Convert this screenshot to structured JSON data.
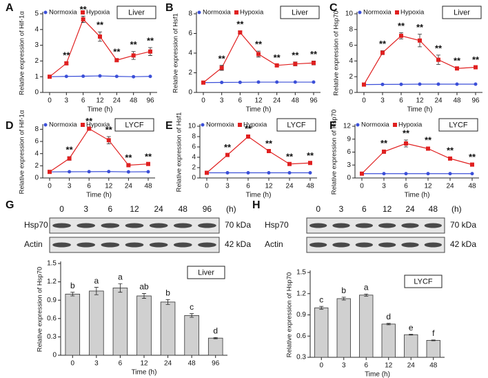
{
  "chart_data": [
    {
      "panel": "A",
      "type": "line",
      "title": "Liver",
      "categories": [
        "0",
        "3",
        "6",
        "12",
        "24",
        "48",
        "96"
      ],
      "xlabel": "Time (h)",
      "ylabel": "Relative expression of Hif-1α",
      "ylim": [
        0,
        5
      ],
      "yticks": [
        0,
        1,
        2,
        3,
        4,
        5
      ],
      "series": [
        {
          "name": "Normoxia",
          "color": "#3b4fd8",
          "marker": "circle",
          "values": [
            1,
            1.02,
            1.03,
            1.05,
            1.02,
            1,
            1.02
          ]
        },
        {
          "name": "Hypoxia",
          "color": "#e02020",
          "marker": "square",
          "values": [
            1,
            1.85,
            4.65,
            3.55,
            2.05,
            2.35,
            2.6
          ],
          "errors": [
            0.03,
            0.08,
            0.2,
            0.3,
            0.1,
            0.25,
            0.25
          ]
        }
      ],
      "annotations": [
        null,
        "**",
        "**",
        "**",
        "**",
        "**",
        "**"
      ]
    },
    {
      "panel": "B",
      "type": "line",
      "title": "Liver",
      "categories": [
        "0",
        "3",
        "6",
        "12",
        "24",
        "48",
        "96"
      ],
      "xlabel": "Time (h)",
      "ylabel": "Relative expression of Hsf1",
      "ylim": [
        0,
        8
      ],
      "yticks": [
        0,
        2,
        4,
        6,
        8
      ],
      "series": [
        {
          "name": "Normoxia",
          "color": "#3b4fd8",
          "marker": "circle",
          "values": [
            1,
            1.02,
            1.03,
            1.05,
            1.05,
            1.05,
            1.05
          ]
        },
        {
          "name": "Hypoxia",
          "color": "#e02020",
          "marker": "square",
          "values": [
            1,
            2.5,
            6.1,
            3.9,
            2.75,
            2.9,
            3.0
          ],
          "errors": [
            0.05,
            0.25,
            0.15,
            0.3,
            0.1,
            0.2,
            0.2
          ]
        }
      ],
      "annotations": [
        null,
        "**",
        "**",
        "**",
        "**",
        "**",
        "**"
      ]
    },
    {
      "panel": "C",
      "type": "line",
      "title": "Liver",
      "categories": [
        "0",
        "3",
        "6",
        "12",
        "24",
        "48",
        "96"
      ],
      "xlabel": "Time (h)",
      "ylabel": "Relative expression of Hsp70",
      "ylim": [
        0,
        10
      ],
      "yticks": [
        0,
        2,
        4,
        6,
        8,
        10
      ],
      "series": [
        {
          "name": "Normoxia",
          "color": "#3b4fd8",
          "marker": "circle",
          "values": [
            1,
            1.02,
            1.03,
            1.05,
            1.05,
            1.05,
            1.05
          ]
        },
        {
          "name": "Hypoxia",
          "color": "#e02020",
          "marker": "square",
          "values": [
            1,
            5.05,
            7.2,
            6.6,
            4.15,
            3.05,
            3.2
          ],
          "errors": [
            0.05,
            0.25,
            0.4,
            0.8,
            0.6,
            0.1,
            0.1
          ]
        }
      ],
      "annotations": [
        null,
        "**",
        "**",
        "**",
        "**",
        "**",
        "**"
      ]
    },
    {
      "panel": "D",
      "type": "line",
      "title": "LYCF",
      "categories": [
        "0",
        "3",
        "6",
        "12",
        "24",
        "48"
      ],
      "xlabel": "Time (h)",
      "ylabel": "Relative expression of Hif-1α",
      "ylim": [
        0,
        8.5
      ],
      "yticks": [
        0,
        2,
        4,
        6,
        8
      ],
      "series": [
        {
          "name": "Normoxia",
          "color": "#3b4fd8",
          "marker": "circle",
          "values": [
            1,
            1.02,
            1.03,
            1.05,
            1.0,
            1.02
          ]
        },
        {
          "name": "Hypoxia",
          "color": "#e02020",
          "marker": "square",
          "values": [
            1,
            3.2,
            8.1,
            6.2,
            2.1,
            2.3
          ],
          "errors": [
            0.05,
            0.3,
            0.1,
            0.6,
            0.1,
            0.1
          ]
        }
      ],
      "annotations": [
        null,
        "**",
        "**",
        "**",
        "**",
        "**"
      ]
    },
    {
      "panel": "E",
      "type": "line",
      "title": "LYCF",
      "categories": [
        "0",
        "3",
        "6",
        "12",
        "24",
        "48"
      ],
      "xlabel": "Time (h)",
      "ylabel": "Relative expression of Hsf1",
      "ylim": [
        0,
        10
      ],
      "yticks": [
        0,
        2,
        4,
        6,
        8,
        10
      ],
      "series": [
        {
          "name": "Normoxia",
          "color": "#3b4fd8",
          "marker": "circle",
          "values": [
            1,
            1.0,
            1.0,
            1.0,
            1.0,
            1.0
          ]
        },
        {
          "name": "Hypoxia",
          "color": "#e02020",
          "marker": "square",
          "values": [
            1,
            4.45,
            8.0,
            5.2,
            2.7,
            2.9
          ],
          "errors": [
            0.05,
            0.15,
            0.2,
            0.15,
            0.1,
            0.1
          ]
        }
      ],
      "annotations": [
        null,
        "**",
        "**",
        "**",
        "**",
        "**"
      ]
    },
    {
      "panel": "F",
      "type": "line",
      "title": "LYCF",
      "categories": [
        "0",
        "3",
        "6",
        "12",
        "24",
        "48"
      ],
      "xlabel": "Time (h)",
      "ylabel": "Relative expression of Hsp70",
      "ylim": [
        0,
        12
      ],
      "yticks": [
        0,
        3,
        6,
        9,
        12
      ],
      "series": [
        {
          "name": "Normoxia",
          "color": "#3b4fd8",
          "marker": "circle",
          "values": [
            1,
            1.0,
            1.0,
            1.0,
            1.0,
            1.0
          ]
        },
        {
          "name": "Hypoxia",
          "color": "#e02020",
          "marker": "square",
          "values": [
            1,
            6.1,
            8.0,
            6.8,
            4.5,
            3.1
          ],
          "errors": [
            0.05,
            0.4,
            0.8,
            0.4,
            0.3,
            0.2
          ]
        }
      ],
      "annotations": [
        null,
        "**",
        "**",
        "**",
        "**",
        "**"
      ]
    },
    {
      "panel": "G",
      "type": "bar",
      "title": "Liver",
      "categories": [
        "0",
        "3",
        "6",
        "12",
        "24",
        "48",
        "96"
      ],
      "xlabel": "Time (h)",
      "ylabel": "Relative expression of Hsp70",
      "ylim": [
        0,
        1.5
      ],
      "yticks": [
        0,
        0.3,
        0.6,
        0.9,
        1.2,
        1.5
      ],
      "color": "#d0d0d0",
      "values": [
        1.0,
        1.05,
        1.1,
        0.97,
        0.87,
        0.65,
        0.28
      ],
      "errors": [
        0.03,
        0.06,
        0.07,
        0.04,
        0.04,
        0.03,
        0.01
      ],
      "letters": [
        "b",
        "a",
        "a",
        "ab",
        "b",
        "c",
        "d"
      ],
      "blot": {
        "lanes": [
          "0",
          "3",
          "6",
          "12",
          "24",
          "48",
          "96"
        ],
        "unit": "(h)",
        "rows": [
          {
            "label": "Hsp70",
            "size": "70 kDa"
          },
          {
            "label": "Actin",
            "size": "42 kDa"
          }
        ]
      }
    },
    {
      "panel": "H",
      "type": "bar",
      "title": "LYCF",
      "categories": [
        "0",
        "3",
        "6",
        "12",
        "24",
        "48"
      ],
      "xlabel": "Time (h)",
      "ylabel": "Relative expression of Hsp70",
      "ylim": [
        0.3,
        1.5
      ],
      "yticks": [
        0.3,
        0.6,
        0.9,
        1.2,
        1.5
      ],
      "color": "#d0d0d0",
      "values": [
        1.0,
        1.13,
        1.18,
        0.77,
        0.62,
        0.54
      ],
      "errors": [
        0.02,
        0.02,
        0.015,
        0.01,
        0.005,
        0.005
      ],
      "letters": [
        "c",
        "b",
        "a",
        "d",
        "e",
        "f"
      ],
      "blot": {
        "lanes": [
          "0",
          "3",
          "6",
          "12",
          "24",
          "48"
        ],
        "unit": "(h)",
        "rows": [
          {
            "label": "Hsp70",
            "size": "70 kDa"
          },
          {
            "label": "Actin",
            "size": "42 kDa"
          }
        ]
      }
    }
  ]
}
